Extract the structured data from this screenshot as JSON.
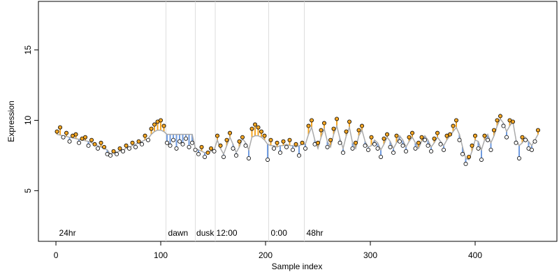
{
  "chart_data": {
    "type": "scatter",
    "xlabel": "Sample index",
    "ylabel": "Expression",
    "xlim": [
      -16.7,
      478
    ],
    "ylim": [
      1.4,
      18.45
    ],
    "xticks": [
      0,
      100,
      200,
      300,
      400
    ],
    "yticks": [
      5,
      10,
      15
    ],
    "up_color": "#f5a623",
    "down_color": "#6f9be0",
    "fit_color": "#aaaaaa",
    "vline_color": "#dddddd",
    "annotation_color": "#aaaaaa",
    "vlines": [
      105,
      133,
      152,
      203,
      237
    ],
    "annotations": [
      {
        "text": "24hr",
        "x": 3
      },
      {
        "text": "dawn",
        "x": 107
      },
      {
        "text": "dusk",
        "x": 134
      },
      {
        "text": "12:00",
        "x": 153
      },
      {
        "text": "0:00",
        "x": 205
      },
      {
        "text": "48hr",
        "x": 239
      }
    ],
    "x": [
      1,
      4,
      7,
      10,
      13,
      16,
      19,
      22,
      25,
      28,
      31,
      34,
      37,
      40,
      43,
      46,
      49,
      52,
      55,
      58,
      61,
      64,
      67,
      70,
      73,
      76,
      79,
      82,
      85,
      88,
      91,
      94,
      97,
      100,
      103,
      106,
      109,
      112,
      115,
      118,
      121,
      124,
      127,
      130,
      133,
      136,
      139,
      142,
      145,
      148,
      151,
      154,
      157,
      160,
      163,
      166,
      169,
      172,
      175,
      178,
      181,
      184,
      187,
      190,
      193,
      196,
      199,
      202,
      205,
      208,
      211,
      214,
      217,
      220,
      223,
      226,
      229,
      232,
      235,
      238,
      241,
      244,
      247,
      250,
      253,
      256,
      259,
      262,
      265,
      268,
      271,
      274,
      277,
      280,
      283,
      286,
      289,
      292,
      295,
      298,
      301,
      304,
      307,
      310,
      313,
      316,
      319,
      322,
      325,
      328,
      331,
      334,
      337,
      340,
      343,
      346,
      349,
      352,
      355,
      358,
      361,
      364,
      367,
      370,
      373,
      376,
      379,
      382,
      385,
      388,
      391,
      394,
      397,
      400,
      403,
      406,
      409,
      412,
      415,
      418,
      421,
      424,
      427,
      430,
      433,
      436,
      439,
      442,
      445,
      448,
      451,
      454,
      457,
      460
    ],
    "values": [
      9.2,
      9.5,
      8.8,
      9.1,
      8.5,
      8.9,
      9.0,
      8.4,
      8.7,
      8.8,
      8.2,
      8.6,
      8.3,
      8.0,
      8.4,
      8.1,
      7.6,
      7.5,
      7.8,
      7.6,
      8.0,
      7.8,
      8.2,
      8.0,
      8.4,
      8.1,
      8.5,
      8.3,
      8.9,
      8.6,
      9.4,
      9.7,
      9.9,
      10.0,
      9.6,
      8.4,
      8.2,
      8.6,
      8.0,
      8.5,
      8.3,
      8.7,
      8.1,
      8.4,
      7.9,
      7.6,
      8.1,
      7.4,
      7.7,
      8.0,
      7.8,
      8.9,
      8.2,
      7.4,
      8.6,
      9.1,
      8.0,
      7.5,
      8.5,
      8.8,
      8.2,
      7.3,
      9.4,
      9.7,
      9.5,
      9.2,
      8.9,
      7.2,
      8.6,
      8.0,
      8.4,
      7.7,
      8.5,
      8.1,
      8.6,
      7.9,
      8.3,
      7.5,
      8.4,
      8.0,
      9.6,
      10.0,
      8.3,
      8.4,
      9.3,
      9.8,
      8.1,
      8.6,
      9.4,
      10.1,
      8.4,
      7.7,
      9.2,
      9.9,
      8.0,
      8.4,
      9.3,
      9.6,
      8.2,
      7.9,
      8.8,
      8.3,
      8.0,
      7.4,
      8.7,
      9.0,
      8.1,
      7.7,
      8.9,
      8.5,
      8.2,
      7.8,
      8.8,
      9.1,
      8.0,
      8.4,
      8.8,
      8.6,
      8.2,
      7.8,
      8.7,
      9.1,
      8.3,
      7.9,
      8.9,
      9.0,
      9.6,
      10.0,
      8.6,
      7.6,
      6.9,
      7.4,
      8.2,
      8.9,
      8.0,
      7.2,
      8.9,
      8.6,
      7.9,
      9.3,
      10.0,
      10.3,
      9.6,
      8.8,
      10.0,
      9.9,
      8.4,
      7.3,
      8.8,
      8.6,
      8.0,
      7.9,
      8.5,
      9.3
    ],
    "fit": [
      9.0,
      8.95,
      8.9,
      8.85,
      8.8,
      8.75,
      8.7,
      8.65,
      8.6,
      8.55,
      8.5,
      8.4,
      8.3,
      8.2,
      8.1,
      8.0,
      7.9,
      7.6,
      7.7,
      7.75,
      7.8,
      7.9,
      8.0,
      8.1,
      8.2,
      8.3,
      8.4,
      8.5,
      8.6,
      8.7,
      9.0,
      9.2,
      9.3,
      9.3,
      9.2,
      9.0,
      9.0,
      9.0,
      9.0,
      9.0,
      9.0,
      9.0,
      9.0,
      9.0,
      8.0,
      7.9,
      7.8,
      7.7,
      7.7,
      7.8,
      7.9,
      8.6,
      8.0,
      7.6,
      8.2,
      8.8,
      8.3,
      7.7,
      8.1,
      8.7,
      8.4,
      7.9,
      8.8,
      8.9,
      8.9,
      8.8,
      8.6,
      8.3,
      8.2,
      8.2,
      8.1,
      8.2,
      8.2,
      8.3,
      8.2,
      8.2,
      8.1,
      8.2,
      8.3,
      8.3,
      9.0,
      9.5,
      8.6,
      8.0,
      8.8,
      9.4,
      8.5,
      8.1,
      9.0,
      9.6,
      8.7,
      8.0,
      8.9,
      9.5,
      8.4,
      8.0,
      8.9,
      9.3,
      8.5,
      8.1,
      8.2,
      8.6,
      8.4,
      7.9,
      8.3,
      8.8,
      8.5,
      8.0,
      8.4,
      8.9,
      8.6,
      8.1,
      8.5,
      8.8,
      8.4,
      8.0,
      8.5,
      8.9,
      8.6,
      8.1,
      8.4,
      8.8,
      8.5,
      8.2,
      8.6,
      8.9,
      9.2,
      9.5,
      9.0,
      8.1,
      7.3,
      7.2,
      7.8,
      8.6,
      8.5,
      7.9,
      8.6,
      9.0,
      8.4,
      8.9,
      9.6,
      10.1,
      9.8,
      9.2,
      9.6,
      9.9,
      8.6,
      8.2,
      8.4,
      8.8,
      8.5,
      8.2,
      8.6,
      9.0
    ]
  }
}
